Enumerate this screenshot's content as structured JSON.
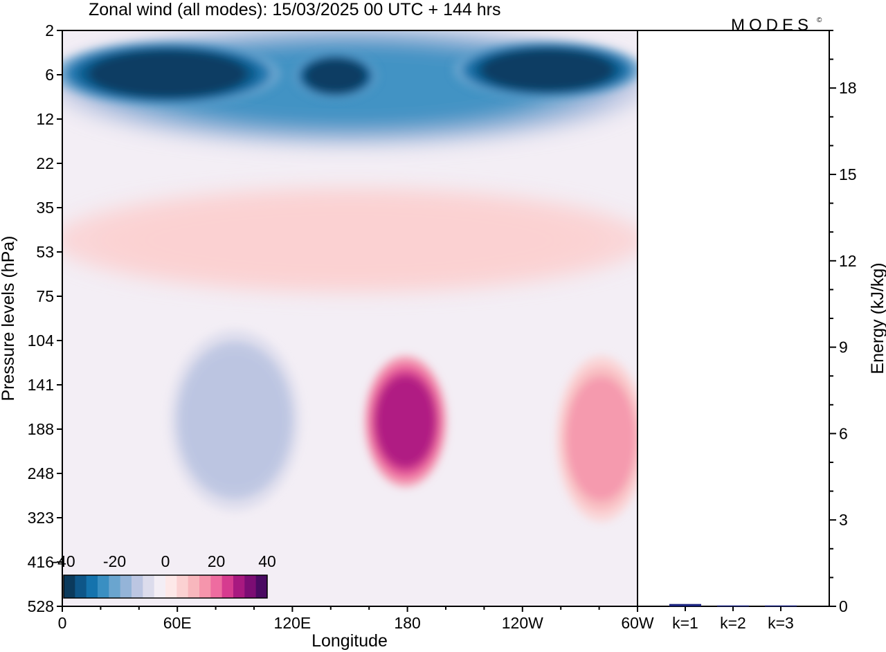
{
  "header": {
    "title": "Zonal wind (all modes):  15/03/2025  00 UTC  + 144 hrs",
    "brand": "MODES",
    "brand_mark": "©"
  },
  "chart_data": [
    {
      "type": "heatmap",
      "title": "Zonal wind (all modes):  15/03/2025  00 UTC  + 144 hrs",
      "xlabel": "Longitude",
      "ylabel": "Pressure levels (hPa)",
      "x_ticks": [
        "0",
        "60E",
        "120E",
        "180",
        "120W",
        "60W"
      ],
      "y_ticks": [
        "2",
        "6",
        "12",
        "22",
        "35",
        "53",
        "75",
        "104",
        "141",
        "188",
        "248",
        "323",
        "416",
        "528"
      ],
      "colorbar": {
        "tick_labels": [
          "-40",
          "-20",
          "0",
          "20",
          "40"
        ],
        "range": [
          -40,
          40
        ],
        "colors": [
          "#0b3a5c",
          "#0e5688",
          "#1573ad",
          "#3a8fc2",
          "#6aa5cf",
          "#94b4d8",
          "#bcc6e2",
          "#dcdcec",
          "#f3eef5",
          "#fde8e8",
          "#fbd1d2",
          "#f8b7bd",
          "#f595ac",
          "#ee6ca0",
          "#d63b8f",
          "#a81980",
          "#7c0d74",
          "#4a0a62"
        ]
      },
      "wind_features": [
        {
          "name": "easterly jet west",
          "lon_deg": [
            0,
            110
          ],
          "p_hPa": [
            3,
            9
          ],
          "u": -40
        },
        {
          "name": "easterly core",
          "lon_deg": [
            125,
            160
          ],
          "p_hPa": [
            4,
            8
          ],
          "u": -40
        },
        {
          "name": "easterly jet east",
          "lon_deg": [
            208,
            298
          ],
          "p_hPa": [
            3,
            8
          ],
          "u": -40
        },
        {
          "name": "upper easterly band",
          "lon_deg": [
            0,
            300
          ],
          "p_hPa": [
            2,
            16
          ],
          "u": -25
        },
        {
          "name": "stratospheric westerly band",
          "lon_deg": [
            0,
            300
          ],
          "p_hPa": [
            30,
            70
          ],
          "u": 8
        },
        {
          "name": "westerly maximum",
          "lon_deg": [
            162,
            196
          ],
          "p_hPa": [
            120,
            260
          ],
          "u": 30
        },
        {
          "name": "secondary westerly",
          "lon_deg": [
            262,
            300
          ],
          "p_hPa": [
            120,
            320
          ],
          "u": 15
        },
        {
          "name": "tropospheric easterly",
          "lon_deg": [
            60,
            120
          ],
          "p_hPa": [
            100,
            300
          ],
          "u": -12
        }
      ]
    },
    {
      "type": "bar",
      "ylabel": "Energy (kJ/kg)",
      "categories": [
        "k=1",
        "k=2",
        "k=3"
      ],
      "values": [
        0.08,
        0.03,
        0.03
      ],
      "ylim": [
        0,
        20
      ],
      "y_ticks": [
        0,
        3,
        6,
        9,
        12,
        15,
        18
      ],
      "bar_color": "#1a237e"
    }
  ]
}
